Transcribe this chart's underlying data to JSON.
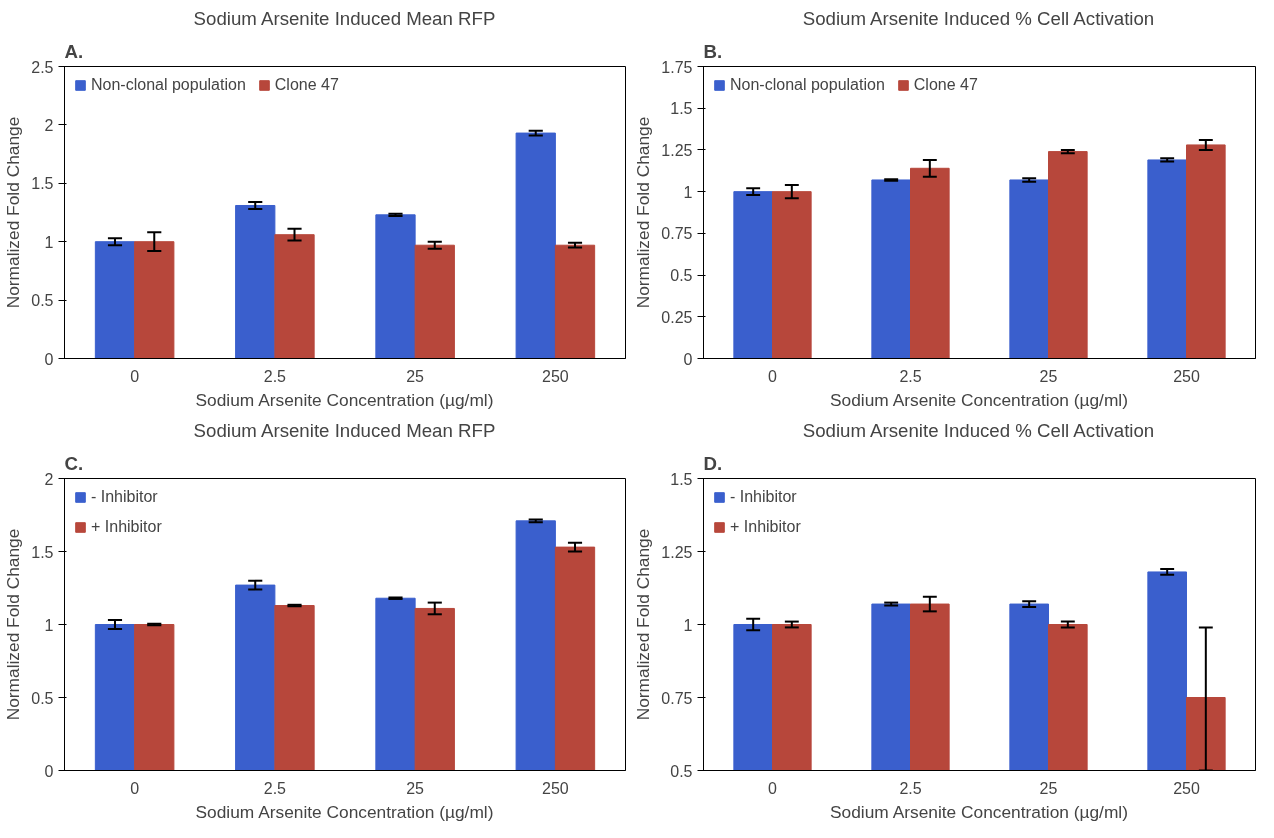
{
  "chart_data": [
    {
      "type": "bar",
      "title": "Sodium Arsenite Induced Mean RFP",
      "annotations": [
        "A."
      ],
      "xlabel": "Sodium Arsenite Concentration (µg/ml)",
      "ylabel": "Normalized Fold Change",
      "categories": [
        "0",
        "2.5",
        "25",
        "250"
      ],
      "ylim": [
        0,
        2.5
      ],
      "yticks": [
        0,
        0.5,
        1,
        1.5,
        2,
        2.5
      ],
      "grid": false,
      "legend": "top left",
      "series": [
        {
          "name": "Non-clonal population",
          "color": "#3a5fcd",
          "values": [
            1.0,
            1.31,
            1.23,
            1.93
          ],
          "errors": [
            0.03,
            0.03,
            0.01,
            0.02
          ]
        },
        {
          "name": "Clone 47",
          "color": "#b7473b",
          "values": [
            1.0,
            1.06,
            0.97,
            0.97
          ],
          "errors": [
            0.08,
            0.05,
            0.03,
            0.02
          ]
        }
      ]
    },
    {
      "type": "bar",
      "title": "Sodium Arsenite Induced % Cell Activation",
      "annotations": [
        "B."
      ],
      "xlabel": "Sodium Arsenite Concentration (µg/ml)",
      "ylabel": "Normalized Fold Change",
      "categories": [
        "0",
        "2.5",
        "25",
        "250"
      ],
      "ylim": [
        0,
        1.75
      ],
      "yticks": [
        0,
        0.25,
        0.5,
        0.75,
        1,
        1.25,
        1.5,
        1.75
      ],
      "grid": false,
      "legend": "top left",
      "series": [
        {
          "name": "Non-clonal population",
          "color": "#3a5fcd",
          "values": [
            1.0,
            1.07,
            1.07,
            1.19
          ],
          "errors": [
            0.02,
            0.005,
            0.01,
            0.01
          ]
        },
        {
          "name": "Clone 47",
          "color": "#b7473b",
          "values": [
            1.0,
            1.14,
            1.24,
            1.28
          ],
          "errors": [
            0.04,
            0.05,
            0.01,
            0.03
          ]
        }
      ]
    },
    {
      "type": "bar",
      "title": "Sodium Arsenite Induced Mean RFP",
      "annotations": [
        "C."
      ],
      "xlabel": "Sodium Arsenite Concentration (µg/ml)",
      "ylabel": "Normalized Fold Change",
      "categories": [
        "0",
        "2.5",
        "25",
        "250"
      ],
      "ylim": [
        0,
        2
      ],
      "yticks": [
        0,
        0.5,
        1,
        1.5,
        2
      ],
      "grid": false,
      "legend": "top left",
      "series": [
        {
          "name": "- Inhibitor",
          "color": "#3a5fcd",
          "values": [
            1.0,
            1.27,
            1.18,
            1.71
          ],
          "errors": [
            0.03,
            0.03,
            0.005,
            0.01
          ]
        },
        {
          "name": "+ Inhibitor",
          "color": "#b7473b",
          "values": [
            1.0,
            1.13,
            1.11,
            1.53
          ],
          "errors": [
            0.005,
            0.005,
            0.04,
            0.03
          ]
        }
      ]
    },
    {
      "type": "bar",
      "title": "Sodium Arsenite Induced % Cell Activation",
      "annotations": [
        "D."
      ],
      "xlabel": "Sodium Arsenite Concentration (µg/ml)",
      "ylabel": "Normalized Fold Change",
      "categories": [
        "0",
        "2.5",
        "25",
        "250"
      ],
      "ylim": [
        0.5,
        1.5
      ],
      "yticks": [
        0.5,
        0.75,
        1,
        1.25,
        1.5
      ],
      "grid": false,
      "legend": "top left",
      "series": [
        {
          "name": "- Inhibitor",
          "color": "#3a5fcd",
          "values": [
            1.0,
            1.07,
            1.07,
            1.18
          ],
          "errors": [
            0.02,
            0.005,
            0.01,
            0.01
          ]
        },
        {
          "name": "+ Inhibitor",
          "color": "#b7473b",
          "values": [
            1.0,
            1.07,
            1.0,
            0.75
          ],
          "errors": [
            0.01,
            0.025,
            0.01,
            [
              0.5,
              0.99
            ]
          ]
        }
      ]
    }
  ]
}
